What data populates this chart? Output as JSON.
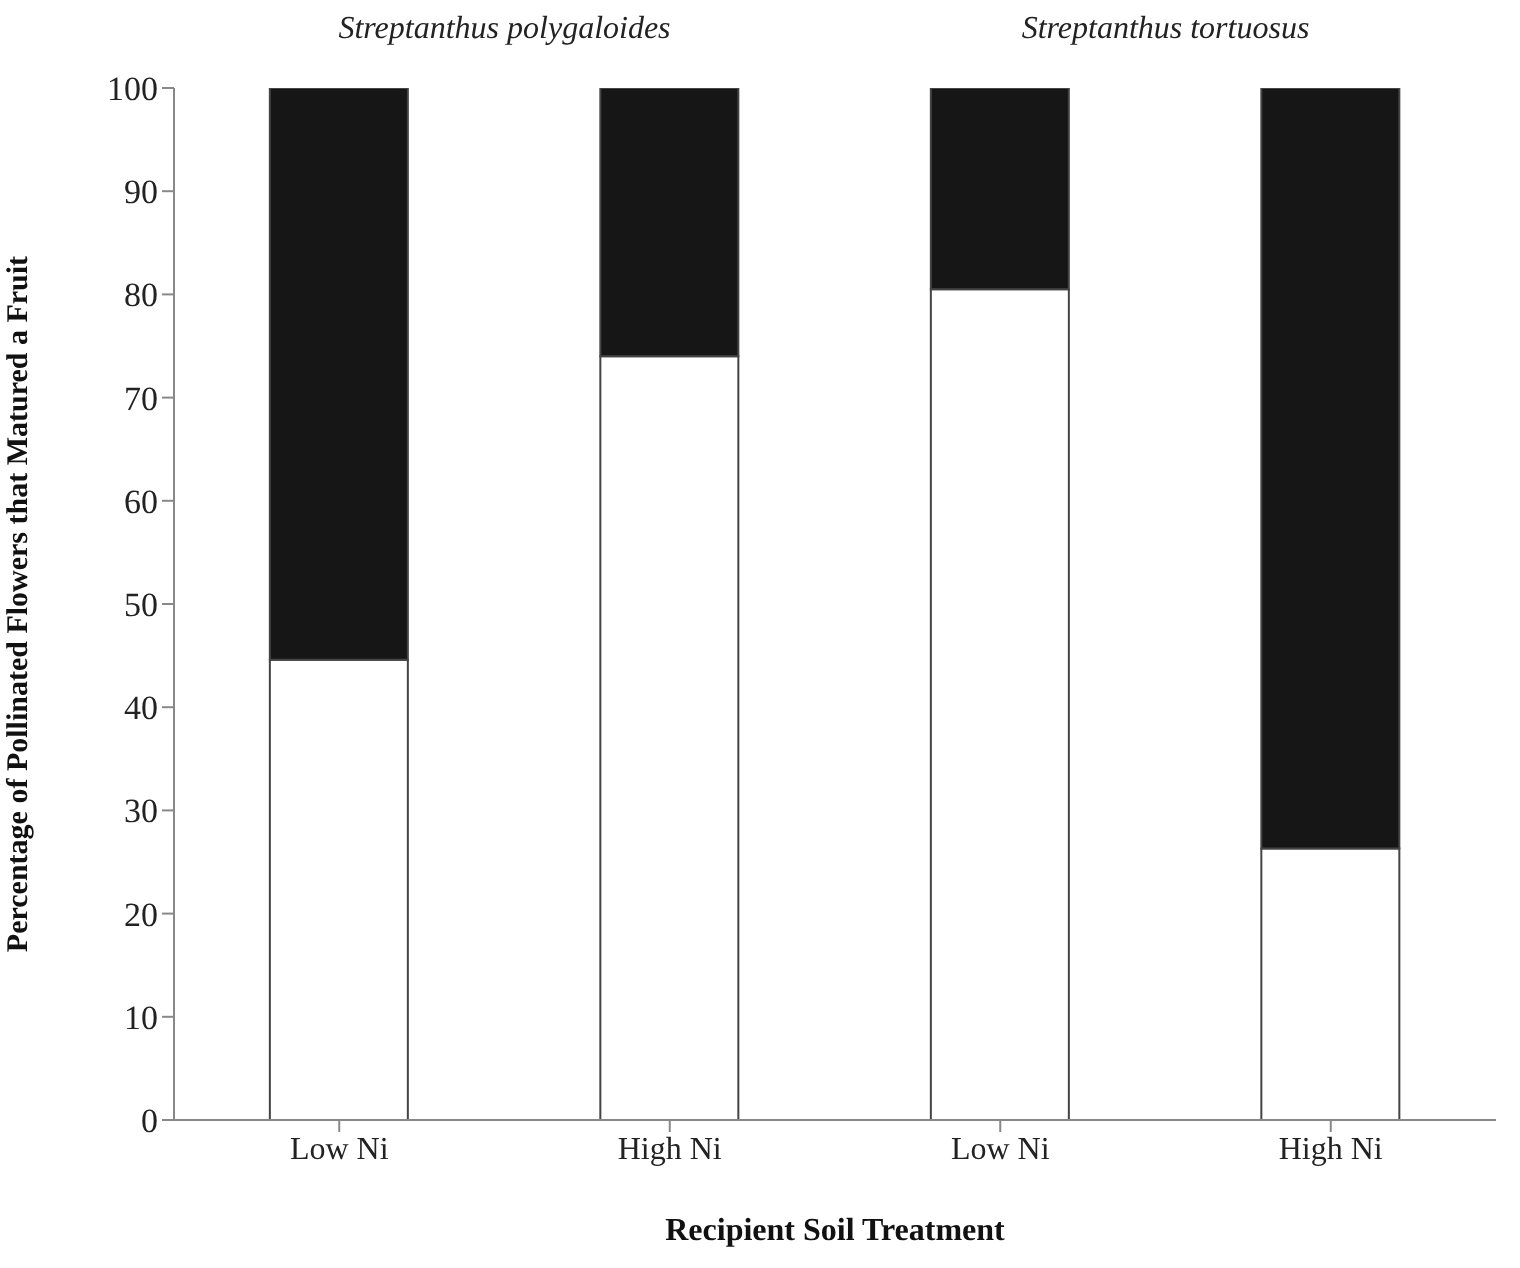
{
  "chart_data": {
    "type": "bar",
    "stacked": true,
    "categories": [
      "Low Ni",
      "High Ni",
      "Low Ni",
      "High Ni"
    ],
    "series": [
      {
        "color": "#ffffff",
        "values": [
          44.6,
          74.0,
          80.5,
          26.3
        ]
      },
      {
        "color": "#161616",
        "values": [
          55.4,
          26.0,
          19.5,
          73.7
        ]
      }
    ],
    "ylim": [
      0,
      100
    ],
    "yticks": [
      0,
      10,
      20,
      30,
      40,
      50,
      60,
      70,
      80,
      90,
      100
    ],
    "xlabel": "Recipient Soil Treatment",
    "ylabel": "Percentage of Pollinated Flowers that Matured a Fruit",
    "annotations": [
      "Streptanthus polygaloides",
      "Streptanthus tortuosus"
    ],
    "grid": false,
    "legend": false
  }
}
